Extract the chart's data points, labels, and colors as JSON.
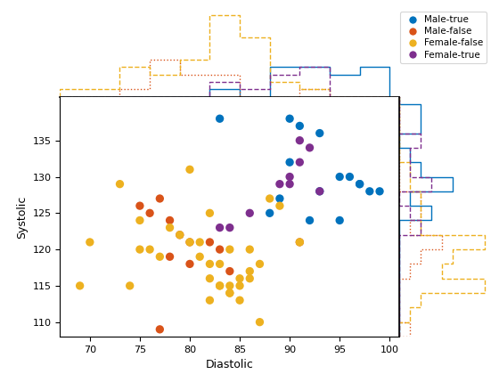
{
  "male_true": {
    "diastolic": [
      83,
      90,
      91,
      93,
      95,
      96,
      97,
      98,
      90,
      92,
      95,
      93,
      97,
      99,
      89,
      88
    ],
    "systolic": [
      138,
      138,
      137,
      136,
      130,
      130,
      129,
      128,
      132,
      124,
      124,
      128,
      129,
      128,
      127,
      125
    ],
    "color": "#0072bd",
    "label": "Male-true",
    "hist_style": "solid"
  },
  "male_false": {
    "diastolic": [
      77,
      75,
      76,
      78,
      79,
      80,
      78,
      80,
      82,
      83,
      84,
      91,
      77
    ],
    "systolic": [
      127,
      126,
      125,
      124,
      122,
      121,
      119,
      118,
      121,
      120,
      117,
      121,
      109
    ],
    "color": "#d95319",
    "label": "Male-false",
    "hist_style": "dotted"
  },
  "female_false": {
    "diastolic": [
      69,
      73,
      74,
      75,
      76,
      77,
      78,
      79,
      80,
      81,
      82,
      83,
      84,
      85,
      86,
      87,
      88,
      89,
      91,
      70,
      75,
      82,
      83,
      84,
      85,
      80,
      81,
      82,
      83,
      84,
      85,
      86,
      82,
      84,
      86,
      87
    ],
    "systolic": [
      115,
      129,
      115,
      124,
      120,
      119,
      123,
      122,
      121,
      121,
      116,
      115,
      114,
      115,
      116,
      118,
      127,
      126,
      121,
      121,
      120,
      125,
      115,
      115,
      113,
      131,
      119,
      118,
      118,
      120,
      116,
      120,
      113,
      114,
      117,
      110
    ],
    "color": "#edb120",
    "label": "Female-false",
    "hist_style": "dashed"
  },
  "female_true": {
    "diastolic": [
      83,
      84,
      86,
      90,
      91,
      92,
      93,
      91,
      90,
      89
    ],
    "systolic": [
      123,
      123,
      125,
      130,
      135,
      134,
      128,
      132,
      129,
      129
    ],
    "color": "#7e2f8e",
    "label": "Female-true",
    "hist_style": "dashed"
  },
  "xlim": [
    67,
    101
  ],
  "ylim": [
    108,
    141
  ],
  "xlabel": "Diastolic",
  "ylabel": "Systolic",
  "xticks": [
    70,
    75,
    80,
    85,
    90,
    95,
    100
  ],
  "yticks": [
    110,
    115,
    120,
    125,
    130,
    135
  ],
  "bin_edges_x": [
    67,
    70,
    73,
    76,
    79,
    82,
    85,
    88,
    91,
    94,
    97,
    100,
    103
  ],
  "bin_edges_y": [
    108,
    110,
    112,
    114,
    116,
    118,
    120,
    122,
    124,
    126,
    128,
    130,
    132,
    134,
    136,
    138,
    140,
    142
  ]
}
